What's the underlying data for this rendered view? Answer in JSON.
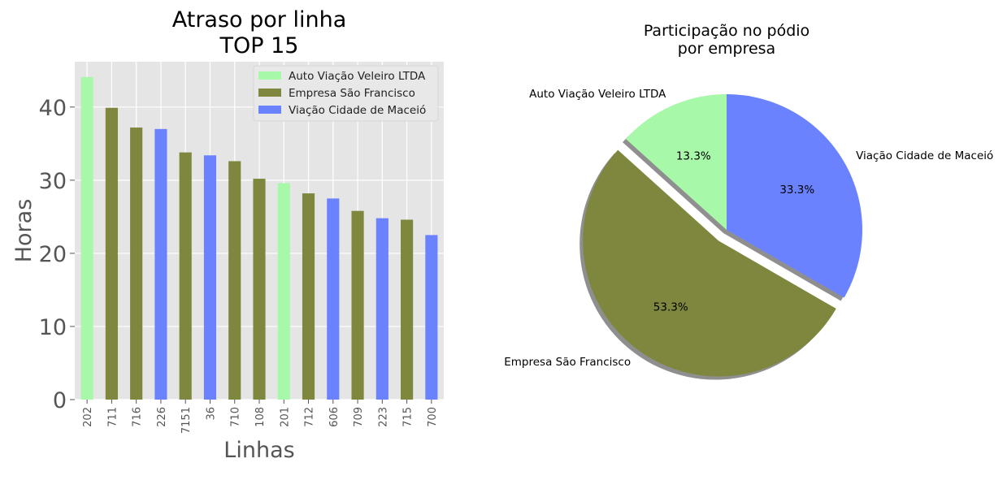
{
  "colors": {
    "Auto Viação Veleiro LTDA": "#a7f8a9",
    "Empresa São Francisco": "#7e873d",
    "Viação Cidade de Maceió": "#6b82ff",
    "plot_background": "#e5e5e5",
    "grid": "#ffffff",
    "tick_text": "#555555",
    "title_text": "#000000",
    "pie_shadow": "#8f8f8f"
  },
  "chart_data": [
    {
      "type": "bar",
      "title": "Atraso por linha\nTOP 15",
      "xlabel": "Linhas",
      "ylabel": "Horas",
      "ylim": [
        0,
        46.2
      ],
      "yticks": [
        0,
        10,
        20,
        30,
        40
      ],
      "grid": true,
      "legend_position": "top-right",
      "legend": [
        "Auto Viação Veleiro LTDA",
        "Empresa São Francisco",
        "Viação Cidade de Maceió"
      ],
      "categories": [
        "202",
        "711",
        "716",
        "226",
        "7151",
        "36",
        "710",
        "108",
        "201",
        "712",
        "606",
        "709",
        "223",
        "715",
        "700"
      ],
      "values": [
        44.1,
        39.9,
        37.2,
        37.0,
        33.8,
        33.4,
        32.6,
        30.2,
        29.6,
        28.2,
        27.5,
        25.8,
        24.8,
        24.6,
        22.5
      ],
      "company": [
        "Auto Viação Veleiro LTDA",
        "Empresa São Francisco",
        "Empresa São Francisco",
        "Viação Cidade de Maceió",
        "Empresa São Francisco",
        "Viação Cidade de Maceió",
        "Empresa São Francisco",
        "Empresa São Francisco",
        "Auto Viação Veleiro LTDA",
        "Empresa São Francisco",
        "Viação Cidade de Maceió",
        "Empresa São Francisco",
        "Viação Cidade de Maceió",
        "Empresa São Francisco",
        "Viação Cidade de Maceió"
      ]
    },
    {
      "type": "pie",
      "title": "Participação no pódio\npor empresa",
      "labels": [
        "Auto Viação Veleiro LTDA",
        "Empresa São Francisco",
        "Viação Cidade de Maceió"
      ],
      "values": [
        13.3,
        53.3,
        33.3
      ],
      "value_labels": [
        "13.3%",
        "53.3%",
        "33.3%"
      ],
      "explode": [
        0,
        1,
        0
      ],
      "shadow": true
    }
  ]
}
